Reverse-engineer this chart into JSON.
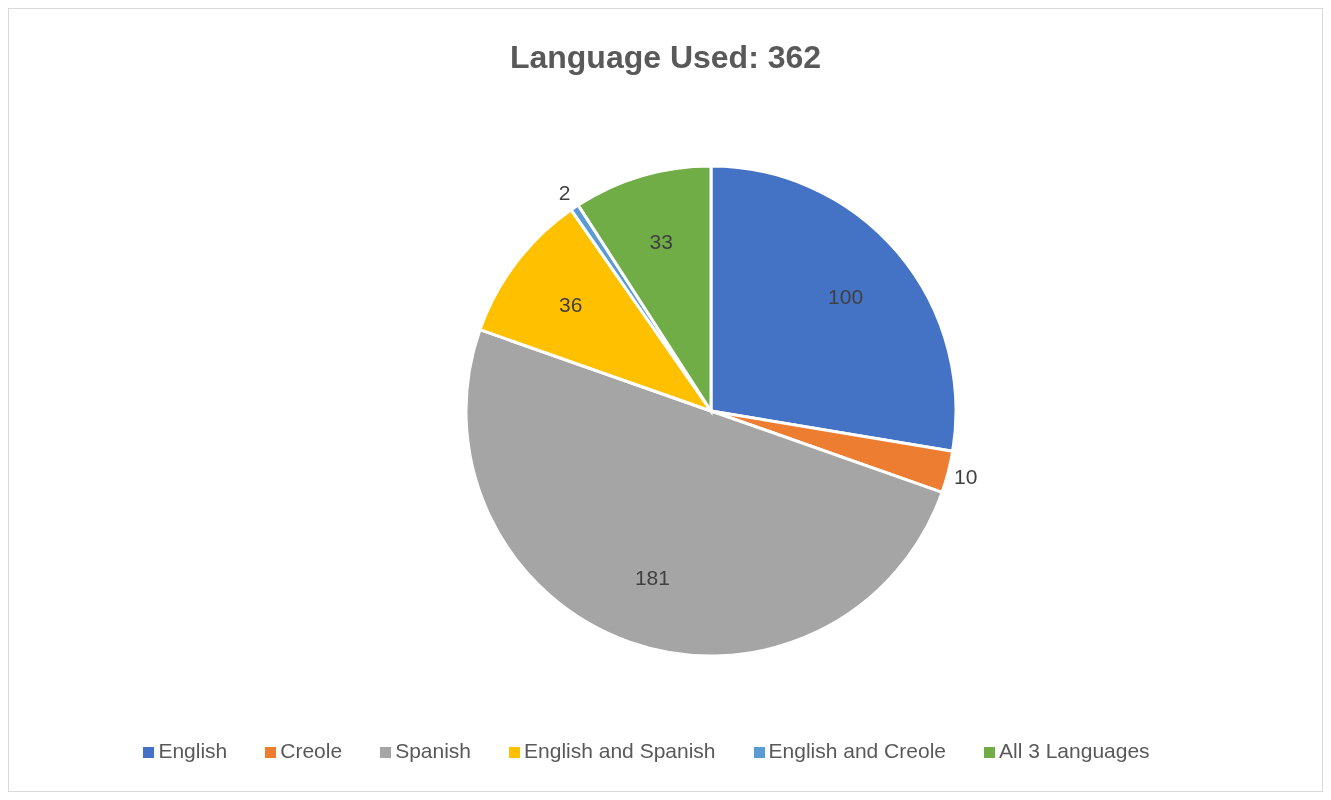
{
  "chart_data": {
    "type": "pie",
    "title": "Language Used: 362",
    "categories": [
      "English",
      "Creole",
      "Spanish",
      "English and Spanish",
      "English and Creole",
      "All 3 Languages"
    ],
    "values": [
      100,
      10,
      181,
      36,
      2,
      33
    ],
    "colors": [
      "#4472c4",
      "#ed7d31",
      "#a5a5a5",
      "#ffc000",
      "#5b9bd5",
      "#70ad47"
    ],
    "data_labels": true,
    "legend": "bottom"
  }
}
